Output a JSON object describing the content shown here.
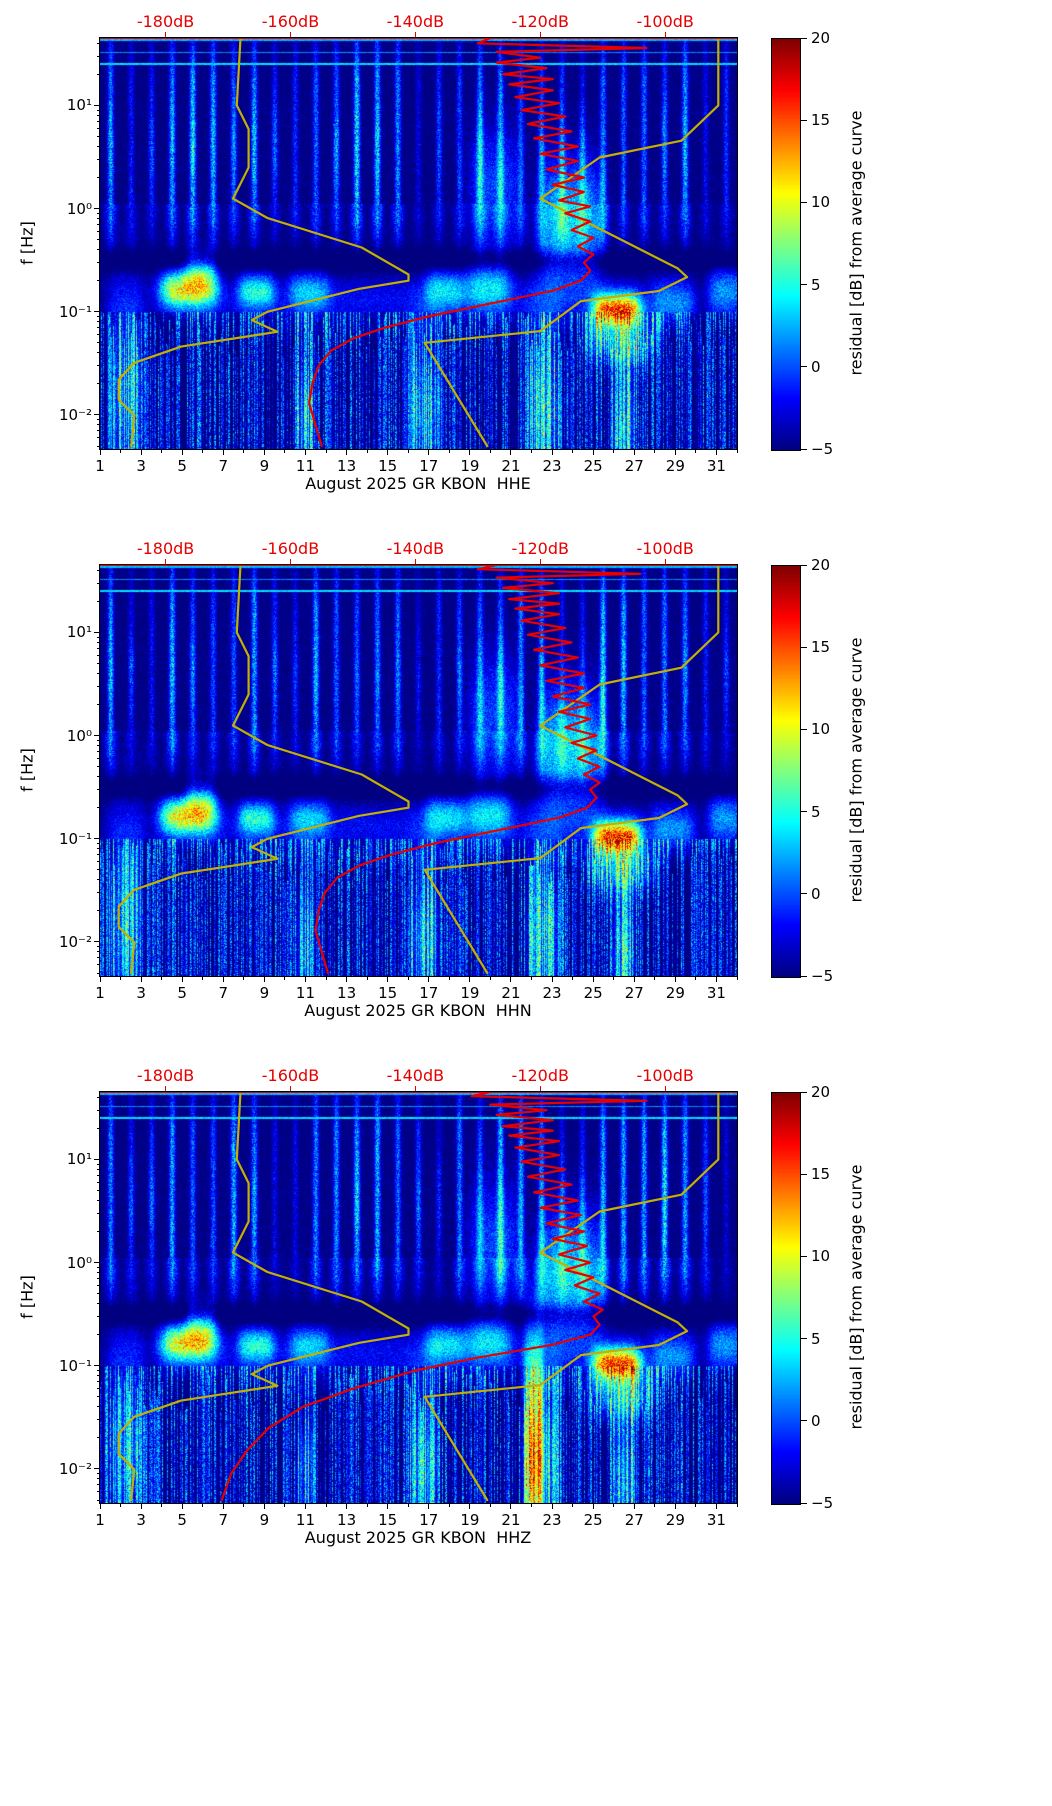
{
  "shared": {
    "colors": {
      "red_axis": "#e60000",
      "red_curve": "#e60000",
      "olive_curve": "#c3b000",
      "axis": "#000000",
      "background": "#ffffff"
    },
    "noise_models": {
      "low_noise_model": {
        "name": "low-noise-model-curve",
        "color": "#c3b000",
        "points_f_db": [
          [
            45,
            -168
          ],
          [
            10,
            -168.6
          ],
          [
            5.9,
            -166.7
          ],
          [
            2.5,
            -166.7
          ],
          [
            1.25,
            -169.2
          ],
          [
            0.81,
            -163.7
          ],
          [
            0.42,
            -148.6
          ],
          [
            0.23,
            -141.1
          ],
          [
            0.2,
            -141.1
          ],
          [
            0.167,
            -149.0
          ],
          [
            0.1,
            -163.7
          ],
          [
            0.083,
            -166.2
          ],
          [
            0.064,
            -162.1
          ],
          [
            0.046,
            -177.5
          ],
          [
            0.032,
            -185.0
          ],
          [
            0.022,
            -187.5
          ],
          [
            0.014,
            -187.5
          ],
          [
            0.0099,
            -185.0
          ],
          [
            0.005,
            -185.5
          ]
        ]
      },
      "high_noise_model": {
        "name": "high-noise-model-curve",
        "color": "#c3b000",
        "points_f_db": [
          [
            45,
            -91.5
          ],
          [
            10,
            -91.5
          ],
          [
            4.55,
            -97.4
          ],
          [
            3.13,
            -110.5
          ],
          [
            1.25,
            -120.0
          ],
          [
            0.263,
            -98.0
          ],
          [
            0.217,
            -96.5
          ],
          [
            0.159,
            -101.0
          ],
          [
            0.127,
            -113.5
          ],
          [
            0.065,
            -120.0
          ],
          [
            0.05,
            -138.5
          ],
          [
            0.005,
            -128.5
          ]
        ]
      }
    },
    "spectrogram_model": {
      "weekend_days": [
        2,
        3,
        9,
        10,
        16,
        17,
        23,
        24,
        30,
        31
      ],
      "quiet_band_hz": [
        0.25,
        0.45
      ],
      "h_lines_hz": [
        [
          25.5,
          4.5,
          0.006
        ],
        [
          33.0,
          2.5,
          0.005
        ],
        [
          44.0,
          3.5,
          0.01
        ]
      ],
      "blobs": [
        [
          5.3,
          1.4,
          -0.78,
          0.13,
          18
        ],
        [
          5.9,
          0.8,
          -0.58,
          0.12,
          8
        ],
        [
          8.6,
          0.9,
          -0.8,
          0.12,
          10
        ],
        [
          26.2,
          1.2,
          -0.98,
          0.11,
          22
        ],
        [
          26.4,
          1.7,
          -1.3,
          0.16,
          9
        ],
        [
          28.9,
          1.1,
          -0.92,
          0.16,
          7
        ],
        [
          23.9,
          1.6,
          -0.12,
          0.42,
          11
        ],
        [
          20.2,
          1.3,
          0.2,
          0.45,
          6
        ],
        [
          19.9,
          1.1,
          -0.75,
          0.16,
          8
        ],
        [
          11.2,
          1.0,
          -0.8,
          0.14,
          7
        ],
        [
          17.8,
          1.0,
          -0.78,
          0.14,
          8
        ],
        [
          31.5,
          0.9,
          -0.8,
          0.18,
          8
        ],
        [
          16.0,
          14.0,
          -0.86,
          0.15,
          4
        ],
        [
          16.0,
          14.0,
          -1.15,
          0.12,
          2.5
        ],
        [
          16.8,
          0.8,
          -1.95,
          0.55,
          8
        ],
        [
          22.6,
          0.9,
          -1.95,
          0.6,
          8
        ],
        [
          11.0,
          0.5,
          -2.05,
          0.5,
          7
        ],
        [
          26.5,
          0.6,
          -2.1,
          0.5,
          8
        ],
        [
          2.2,
          0.9,
          -1.8,
          0.7,
          8
        ]
      ]
    }
  },
  "chart_data": [
    {
      "type": "heatmap",
      "subtype": "spectrogram",
      "channel": "HHE",
      "xlabel": "August 2025 GR KBON  HHE",
      "ylabel": "f [Hz]",
      "x_ticks": [
        1,
        3,
        5,
        7,
        9,
        11,
        13,
        15,
        17,
        19,
        21,
        23,
        25,
        27,
        29,
        31
      ],
      "x_range_days": [
        1,
        32
      ],
      "y_scale": "log",
      "y_ticks_hz": [
        10,
        1,
        0.1,
        0.01
      ],
      "y_tick_labels": [
        "10¹",
        "10⁰",
        "10⁻¹",
        "10⁻²"
      ],
      "y_range_hz": [
        0.00468,
        45
      ],
      "top_axis_ticks_db": [
        -180,
        -160,
        -140,
        -120,
        -100
      ],
      "top_axis_tick_labels": [
        "-180dB",
        "-160dB",
        "-140dB",
        "-120dB",
        "-100dB"
      ],
      "top_axis_range_db": [
        -190.5,
        -88.5
      ],
      "colorbar_label": "residual [dB] from average curve",
      "colorbar_range": [
        -5,
        20
      ],
      "colorbar_ticks": [
        20,
        15,
        10,
        5,
        0,
        -5
      ],
      "colorbar_tick_labels": [
        "20",
        "15",
        "10",
        "5",
        "0",
        "−5"
      ],
      "colormap": "jet",
      "seed": 11,
      "extra_blobs": [],
      "red_curve_points_f_db": [
        [
          45,
          -128
        ],
        [
          40,
          -130
        ],
        [
          36,
          -103
        ],
        [
          33,
          -127
        ],
        [
          29,
          -120
        ],
        [
          26,
          -127
        ],
        [
          23,
          -119
        ],
        [
          20,
          -126
        ],
        [
          18,
          -118
        ],
        [
          16,
          -125
        ],
        [
          14,
          -118
        ],
        [
          12,
          -124
        ],
        [
          10.5,
          -117
        ],
        [
          9,
          -123
        ],
        [
          7.8,
          -116
        ],
        [
          6.6,
          -122
        ],
        [
          5.6,
          -115
        ],
        [
          4.8,
          -121
        ],
        [
          4,
          -114
        ],
        [
          3.4,
          -120
        ],
        [
          2.9,
          -114
        ],
        [
          2.4,
          -119
        ],
        [
          2,
          -113
        ],
        [
          1.7,
          -118
        ],
        [
          1.45,
          -113
        ],
        [
          1.2,
          -117
        ],
        [
          1.05,
          -112
        ],
        [
          0.9,
          -116
        ],
        [
          0.75,
          -112
        ],
        [
          0.62,
          -115
        ],
        [
          0.52,
          -111.5
        ],
        [
          0.43,
          -114
        ],
        [
          0.36,
          -111.5
        ],
        [
          0.3,
          -113
        ],
        [
          0.25,
          -112
        ],
        [
          0.2,
          -113.5
        ],
        [
          0.16,
          -118
        ],
        [
          0.12,
          -128
        ],
        [
          0.09,
          -138
        ],
        [
          0.07,
          -145
        ],
        [
          0.055,
          -150
        ],
        [
          0.042,
          -153.5
        ],
        [
          0.03,
          -155.5
        ],
        [
          0.02,
          -156.5
        ],
        [
          0.013,
          -157
        ],
        [
          0.008,
          -156
        ],
        [
          0.005,
          -155
        ]
      ]
    },
    {
      "type": "heatmap",
      "subtype": "spectrogram",
      "channel": "HHN",
      "xlabel": "August 2025 GR KBON  HHN",
      "ylabel": "f [Hz]",
      "x_ticks": [
        1,
        3,
        5,
        7,
        9,
        11,
        13,
        15,
        17,
        19,
        21,
        23,
        25,
        27,
        29,
        31
      ],
      "x_range_days": [
        1,
        32
      ],
      "y_scale": "log",
      "y_ticks_hz": [
        10,
        1,
        0.1,
        0.01
      ],
      "y_tick_labels": [
        "10¹",
        "10⁰",
        "10⁻¹",
        "10⁻²"
      ],
      "y_range_hz": [
        0.00468,
        45
      ],
      "top_axis_ticks_db": [
        -180,
        -160,
        -140,
        -120,
        -100
      ],
      "top_axis_tick_labels": [
        "-180dB",
        "-160dB",
        "-140dB",
        "-120dB",
        "-100dB"
      ],
      "top_axis_range_db": [
        -190.5,
        -88.5
      ],
      "colorbar_label": "residual [dB] from average curve",
      "colorbar_range": [
        -5,
        20
      ],
      "colorbar_ticks": [
        20,
        15,
        10,
        5,
        0,
        -5
      ],
      "colorbar_tick_labels": [
        "20",
        "15",
        "10",
        "5",
        "0",
        "−5"
      ],
      "colormap": "jet",
      "seed": 22,
      "extra_blobs": [],
      "red_curve_points_f_db": [
        [
          45,
          -127
        ],
        [
          41,
          -130
        ],
        [
          37,
          -104
        ],
        [
          34,
          -127
        ],
        [
          30,
          -118
        ],
        [
          27,
          -126
        ],
        [
          24,
          -117
        ],
        [
          21,
          -125
        ],
        [
          19,
          -117
        ],
        [
          17,
          -124
        ],
        [
          15,
          -117
        ],
        [
          13,
          -123
        ],
        [
          11,
          -116
        ],
        [
          9.5,
          -122
        ],
        [
          8,
          -115
        ],
        [
          6.8,
          -121
        ],
        [
          5.7,
          -114
        ],
        [
          4.8,
          -120
        ],
        [
          4,
          -113
        ],
        [
          3.4,
          -119
        ],
        [
          2.9,
          -113
        ],
        [
          2.4,
          -118
        ],
        [
          2,
          -112
        ],
        [
          1.7,
          -117
        ],
        [
          1.45,
          -112
        ],
        [
          1.2,
          -116
        ],
        [
          1.0,
          -111
        ],
        [
          0.85,
          -115
        ],
        [
          0.72,
          -111
        ],
        [
          0.6,
          -114
        ],
        [
          0.5,
          -110.5
        ],
        [
          0.42,
          -113
        ],
        [
          0.35,
          -110.5
        ],
        [
          0.3,
          -112
        ],
        [
          0.25,
          -111
        ],
        [
          0.2,
          -112.5
        ],
        [
          0.16,
          -117
        ],
        [
          0.12,
          -127
        ],
        [
          0.09,
          -137
        ],
        [
          0.07,
          -144
        ],
        [
          0.055,
          -149
        ],
        [
          0.042,
          -152.5
        ],
        [
          0.03,
          -154.5
        ],
        [
          0.02,
          -155.5
        ],
        [
          0.013,
          -156
        ],
        [
          0.008,
          -155
        ],
        [
          0.005,
          -154
        ]
      ]
    },
    {
      "type": "heatmap",
      "subtype": "spectrogram",
      "channel": "HHZ",
      "xlabel": "August 2025 GR KBON  HHZ",
      "ylabel": "f [Hz]",
      "x_ticks": [
        1,
        3,
        5,
        7,
        9,
        11,
        13,
        15,
        17,
        19,
        21,
        23,
        25,
        27,
        29,
        31
      ],
      "x_range_days": [
        1,
        32
      ],
      "y_scale": "log",
      "y_ticks_hz": [
        10,
        1,
        0.1,
        0.01
      ],
      "y_tick_labels": [
        "10¹",
        "10⁰",
        "10⁻¹",
        "10⁻²"
      ],
      "y_range_hz": [
        0.00468,
        45
      ],
      "top_axis_ticks_db": [
        -180,
        -160,
        -140,
        -120,
        -100
      ],
      "top_axis_tick_labels": [
        "-180dB",
        "-160dB",
        "-140dB",
        "-120dB",
        "-100dB"
      ],
      "top_axis_range_db": [
        -190.5,
        -88.5
      ],
      "colorbar_label": "residual [dB] from average curve",
      "colorbar_range": [
        -5,
        20
      ],
      "colorbar_ticks": [
        20,
        15,
        10,
        5,
        0,
        -5
      ],
      "colorbar_tick_labels": [
        "20",
        "15",
        "10",
        "5",
        "0",
        "−5"
      ],
      "colormap": "jet",
      "seed": 33,
      "extra_blobs": [
        [
          22.1,
          0.5,
          -1.8,
          0.8,
          14
        ]
      ],
      "red_curve_points_f_db": [
        [
          45,
          -128
        ],
        [
          41,
          -131
        ],
        [
          37,
          -103
        ],
        [
          34,
          -128
        ],
        [
          30,
          -119
        ],
        [
          27,
          -127
        ],
        [
          24,
          -118
        ],
        [
          21,
          -126
        ],
        [
          19,
          -118
        ],
        [
          17,
          -125
        ],
        [
          15,
          -117
        ],
        [
          13,
          -124
        ],
        [
          11,
          -117
        ],
        [
          9.5,
          -123
        ],
        [
          8,
          -116
        ],
        [
          6.8,
          -122
        ],
        [
          5.7,
          -115
        ],
        [
          4.8,
          -121
        ],
        [
          4,
          -114
        ],
        [
          3.4,
          -120
        ],
        [
          2.9,
          -113.5
        ],
        [
          2.4,
          -119
        ],
        [
          2,
          -113
        ],
        [
          1.7,
          -118
        ],
        [
          1.45,
          -112.5
        ],
        [
          1.2,
          -117
        ],
        [
          1.0,
          -112
        ],
        [
          0.85,
          -116
        ],
        [
          0.72,
          -111.5
        ],
        [
          0.6,
          -114.5
        ],
        [
          0.5,
          -110.5
        ],
        [
          0.42,
          -113
        ],
        [
          0.35,
          -110
        ],
        [
          0.3,
          -111.5
        ],
        [
          0.25,
          -110.5
        ],
        [
          0.2,
          -112
        ],
        [
          0.16,
          -118
        ],
        [
          0.12,
          -130
        ],
        [
          0.09,
          -140
        ],
        [
          0.06,
          -150
        ],
        [
          0.04,
          -158
        ],
        [
          0.025,
          -163.5
        ],
        [
          0.015,
          -167
        ],
        [
          0.009,
          -169.5
        ],
        [
          0.005,
          -171
        ]
      ]
    }
  ]
}
